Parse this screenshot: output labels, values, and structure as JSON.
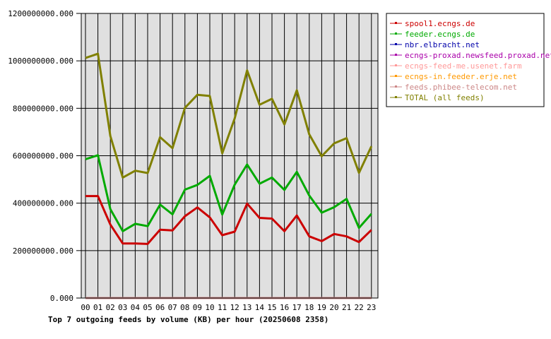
{
  "chart_data": {
    "type": "line",
    "title": "Top 7 outgoing feeds by volume (KB) per hour (20250608 2358)",
    "xlabel": "",
    "ylabel": "",
    "categories": [
      "00",
      "01",
      "02",
      "03",
      "04",
      "05",
      "06",
      "07",
      "08",
      "09",
      "10",
      "11",
      "12",
      "13",
      "14",
      "15",
      "16",
      "17",
      "18",
      "19",
      "20",
      "21",
      "22",
      "23"
    ],
    "ylim": [
      0,
      1200000000
    ],
    "y_ticks": [
      0,
      200000000,
      400000000,
      600000000,
      800000000,
      1000000000,
      1200000000
    ],
    "y_tick_labels": [
      "0.000",
      "200000000.000",
      "400000000.000",
      "600000000.000",
      "800000000.000",
      "1000000000.000",
      "1200000000.000"
    ],
    "grid": true,
    "legend_position": "right",
    "series": [
      {
        "name": "spool1.ecngs.de",
        "color": "#cc0000",
        "values": [
          430000000,
          430000000,
          310000000,
          230000000,
          230000000,
          228000000,
          288000000,
          285000000,
          345000000,
          382000000,
          340000000,
          265000000,
          280000000,
          398000000,
          338000000,
          335000000,
          282000000,
          348000000,
          260000000,
          240000000,
          270000000,
          260000000,
          236000000,
          287000000
        ]
      },
      {
        "name": "feeder.ecngs.de",
        "color": "#00aa00",
        "values": [
          585000000,
          602000000,
          375000000,
          282000000,
          313000000,
          303000000,
          394000000,
          353000000,
          457000000,
          477000000,
          515000000,
          352000000,
          478000000,
          563000000,
          482000000,
          508000000,
          456000000,
          532000000,
          432000000,
          360000000,
          383000000,
          418000000,
          296000000,
          355000000
        ]
      },
      {
        "name": "nbr.elbracht.net",
        "color": "#0000aa",
        "values": [
          0,
          0,
          0,
          0,
          0,
          0,
          0,
          0,
          0,
          0,
          0,
          0,
          0,
          0,
          0,
          0,
          0,
          0,
          0,
          0,
          0,
          0,
          0,
          0
        ]
      },
      {
        "name": "ecngs-proxad.newsfeed.proxad.net",
        "color": "#aa00aa",
        "values": [
          0,
          0,
          0,
          0,
          0,
          0,
          0,
          0,
          0,
          0,
          0,
          0,
          0,
          0,
          0,
          0,
          0,
          0,
          0,
          0,
          0,
          0,
          0,
          0
        ]
      },
      {
        "name": "ecngs-feed-me.usenet.farm",
        "color": "#ff9999",
        "values": [
          0,
          0,
          0,
          0,
          0,
          0,
          0,
          0,
          0,
          0,
          0,
          0,
          0,
          0,
          0,
          0,
          0,
          0,
          0,
          0,
          0,
          0,
          0,
          0
        ]
      },
      {
        "name": "ecngs-in.feeder.erje.net",
        "color": "#ff9900",
        "values": [
          0,
          0,
          0,
          0,
          0,
          0,
          0,
          0,
          0,
          0,
          0,
          0,
          0,
          0,
          0,
          0,
          0,
          0,
          0,
          0,
          0,
          0,
          0,
          0
        ]
      },
      {
        "name": "feeds.phibee-telecom.net",
        "color": "#cc8888",
        "values": [
          0,
          0,
          0,
          0,
          0,
          0,
          0,
          0,
          0,
          0,
          0,
          0,
          0,
          0,
          0,
          0,
          0,
          0,
          0,
          0,
          0,
          0,
          0,
          0
        ]
      },
      {
        "name": "TOTAL (all feeds)",
        "color": "#808000",
        "values": [
          1012000000,
          1030000000,
          683000000,
          508000000,
          537000000,
          527000000,
          678000000,
          632000000,
          802000000,
          857000000,
          852000000,
          610000000,
          757000000,
          960000000,
          815000000,
          840000000,
          732000000,
          876000000,
          690000000,
          598000000,
          652000000,
          674000000,
          528000000,
          640000000
        ]
      }
    ]
  }
}
